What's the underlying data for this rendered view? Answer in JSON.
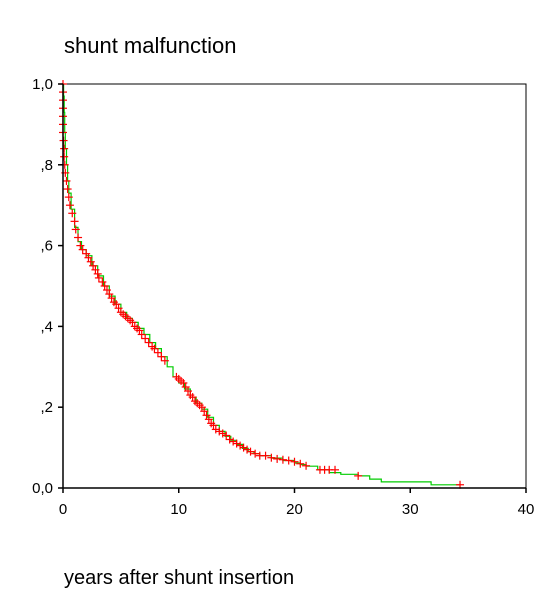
{
  "chart_data": {
    "type": "line",
    "subtype": "kaplan-meier",
    "title": "shunt malfunction",
    "xlabel": "years after shunt insertion",
    "ylabel": "",
    "xlim": [
      0,
      40
    ],
    "ylim": [
      0,
      1
    ],
    "x_ticks": [
      {
        "value": 0,
        "label": "0"
      },
      {
        "value": 10,
        "label": "10"
      },
      {
        "value": 20,
        "label": "20"
      },
      {
        "value": 30,
        "label": "30"
      },
      {
        "value": 40,
        "label": "40"
      }
    ],
    "y_ticks": [
      {
        "value": 0,
        "label": "0,0"
      },
      {
        "value": 0.2,
        "label": ",2"
      },
      {
        "value": 0.4,
        "label": ",4"
      },
      {
        "value": 0.6,
        "label": ",6"
      },
      {
        "value": 0.8,
        "label": ",8"
      },
      {
        "value": 1.0,
        "label": "1,0"
      }
    ],
    "grid": false,
    "series": [
      {
        "curve_color": "#00cc00",
        "censor_color": "#ff0000",
        "curve": [
          [
            0,
            1.0
          ],
          [
            0.05,
            0.97
          ],
          [
            0.1,
            0.93
          ],
          [
            0.15,
            0.88
          ],
          [
            0.2,
            0.84
          ],
          [
            0.3,
            0.8
          ],
          [
            0.4,
            0.76
          ],
          [
            0.5,
            0.73
          ],
          [
            0.7,
            0.69
          ],
          [
            1.0,
            0.645
          ],
          [
            1.3,
            0.61
          ],
          [
            1.6,
            0.59
          ],
          [
            2.0,
            0.575
          ],
          [
            2.5,
            0.55
          ],
          [
            3.0,
            0.525
          ],
          [
            3.5,
            0.5
          ],
          [
            4.0,
            0.475
          ],
          [
            4.5,
            0.455
          ],
          [
            5.0,
            0.435
          ],
          [
            5.5,
            0.42
          ],
          [
            6.0,
            0.41
          ],
          [
            6.5,
            0.395
          ],
          [
            7.0,
            0.38
          ],
          [
            7.5,
            0.36
          ],
          [
            8.0,
            0.345
          ],
          [
            8.5,
            0.325
          ],
          [
            9.0,
            0.3
          ],
          [
            9.5,
            0.275
          ],
          [
            10.0,
            0.26
          ],
          [
            10.5,
            0.245
          ],
          [
            11.0,
            0.225
          ],
          [
            11.5,
            0.21
          ],
          [
            12.0,
            0.195
          ],
          [
            12.5,
            0.175
          ],
          [
            13.0,
            0.155
          ],
          [
            13.5,
            0.14
          ],
          [
            14.0,
            0.128
          ],
          [
            14.5,
            0.118
          ],
          [
            15.0,
            0.108
          ],
          [
            15.5,
            0.098
          ],
          [
            16.0,
            0.09
          ],
          [
            16.5,
            0.085
          ],
          [
            17.0,
            0.08
          ],
          [
            18.0,
            0.074
          ],
          [
            19.0,
            0.068
          ],
          [
            20.0,
            0.062
          ],
          [
            20.5,
            0.058
          ],
          [
            21.0,
            0.054
          ],
          [
            22.0,
            0.045
          ],
          [
            23.0,
            0.038
          ],
          [
            24.0,
            0.034
          ],
          [
            25.5,
            0.03
          ],
          [
            26.5,
            0.022
          ],
          [
            27.5,
            0.015
          ],
          [
            31.8,
            0.008
          ],
          [
            34.3,
            0.008
          ]
        ],
        "censored": [
          [
            0,
            1.0
          ],
          [
            0,
            0.98
          ],
          [
            0,
            0.96
          ],
          [
            0,
            0.94
          ],
          [
            0,
            0.92
          ],
          [
            0,
            0.9
          ],
          [
            0,
            0.88
          ],
          [
            0.05,
            0.86
          ],
          [
            0.1,
            0.84
          ],
          [
            0.1,
            0.82
          ],
          [
            0.15,
            0.8
          ],
          [
            0.2,
            0.78
          ],
          [
            0.3,
            0.76
          ],
          [
            0.4,
            0.74
          ],
          [
            0.5,
            0.72
          ],
          [
            0.6,
            0.7
          ],
          [
            0.8,
            0.68
          ],
          [
            1.0,
            0.66
          ],
          [
            1.1,
            0.64
          ],
          [
            1.3,
            0.62
          ],
          [
            1.5,
            0.6
          ],
          [
            1.7,
            0.59
          ],
          [
            2.0,
            0.58
          ],
          [
            2.2,
            0.57
          ],
          [
            2.4,
            0.56
          ],
          [
            2.6,
            0.55
          ],
          [
            2.8,
            0.54
          ],
          [
            3.0,
            0.53
          ],
          [
            3.1,
            0.52
          ],
          [
            3.4,
            0.51
          ],
          [
            3.6,
            0.5
          ],
          [
            3.8,
            0.49
          ],
          [
            4.0,
            0.48
          ],
          [
            4.2,
            0.47
          ],
          [
            4.4,
            0.46
          ],
          [
            4.6,
            0.455
          ],
          [
            4.8,
            0.445
          ],
          [
            5.0,
            0.435
          ],
          [
            5.2,
            0.43
          ],
          [
            5.4,
            0.425
          ],
          [
            5.6,
            0.42
          ],
          [
            5.8,
            0.415
          ],
          [
            6.0,
            0.41
          ],
          [
            6.2,
            0.4
          ],
          [
            6.4,
            0.395
          ],
          [
            6.6,
            0.39
          ],
          [
            6.8,
            0.38
          ],
          [
            7.1,
            0.37
          ],
          [
            7.4,
            0.36
          ],
          [
            7.7,
            0.35
          ],
          [
            7.9,
            0.345
          ],
          [
            8.2,
            0.335
          ],
          [
            8.5,
            0.325
          ],
          [
            8.8,
            0.315
          ],
          [
            9.8,
            0.275
          ],
          [
            10.0,
            0.27
          ],
          [
            10.2,
            0.265
          ],
          [
            10.4,
            0.26
          ],
          [
            10.6,
            0.25
          ],
          [
            10.8,
            0.24
          ],
          [
            11.0,
            0.23
          ],
          [
            11.2,
            0.225
          ],
          [
            11.4,
            0.215
          ],
          [
            11.6,
            0.21
          ],
          [
            11.8,
            0.205
          ],
          [
            12.0,
            0.2
          ],
          [
            12.2,
            0.19
          ],
          [
            12.4,
            0.18
          ],
          [
            12.6,
            0.17
          ],
          [
            12.8,
            0.16
          ],
          [
            13.0,
            0.155
          ],
          [
            13.2,
            0.145
          ],
          [
            13.5,
            0.14
          ],
          [
            13.8,
            0.135
          ],
          [
            14.1,
            0.13
          ],
          [
            14.4,
            0.12
          ],
          [
            14.7,
            0.115
          ],
          [
            15.0,
            0.11
          ],
          [
            15.3,
            0.105
          ],
          [
            15.6,
            0.1
          ],
          [
            15.9,
            0.095
          ],
          [
            16.2,
            0.09
          ],
          [
            16.6,
            0.085
          ],
          [
            17.0,
            0.08
          ],
          [
            17.5,
            0.08
          ],
          [
            18.0,
            0.075
          ],
          [
            18.5,
            0.072
          ],
          [
            19.0,
            0.07
          ],
          [
            19.5,
            0.068
          ],
          [
            20.0,
            0.065
          ],
          [
            20.5,
            0.06
          ],
          [
            21.0,
            0.055
          ],
          [
            22.2,
            0.045
          ],
          [
            22.6,
            0.045
          ],
          [
            23.0,
            0.045
          ],
          [
            23.5,
            0.045
          ],
          [
            25.5,
            0.03
          ],
          [
            34.3,
            0.008
          ]
        ]
      }
    ]
  }
}
